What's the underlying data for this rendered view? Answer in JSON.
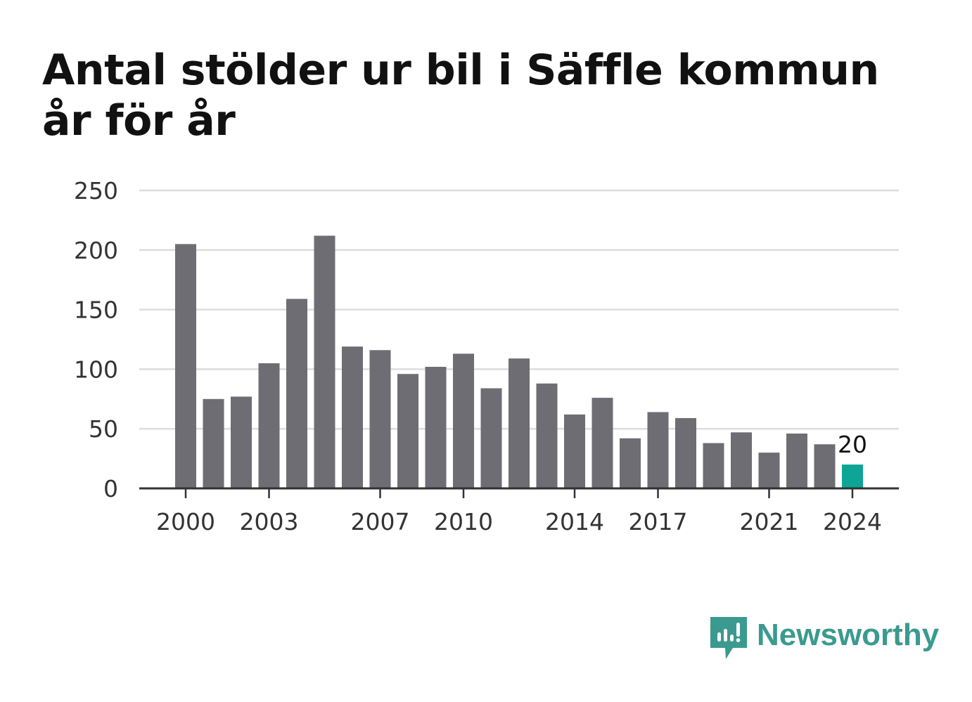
{
  "title": "Antal stölder ur bil i Säffle kommun år för år",
  "brand": {
    "name": "Newsworthy",
    "icon": "newsworthy-logo-icon",
    "color": "#3b9a8f"
  },
  "colors": {
    "bar": "#6e6d73",
    "highlight": "#0ca596",
    "grid": "#dddddd",
    "axis": "#333333",
    "text": "#333333"
  },
  "chart_data": {
    "type": "bar",
    "title": "Antal stölder ur bil i Säffle kommun år för år",
    "xlabel": "",
    "ylabel": "",
    "categories": [
      2000,
      2001,
      2002,
      2003,
      2004,
      2005,
      2006,
      2007,
      2008,
      2009,
      2010,
      2011,
      2012,
      2013,
      2014,
      2015,
      2016,
      2017,
      2018,
      2019,
      2020,
      2021,
      2022,
      2023,
      2024
    ],
    "values": [
      205,
      75,
      77,
      105,
      159,
      212,
      119,
      116,
      96,
      102,
      113,
      84,
      109,
      88,
      62,
      76,
      42,
      64,
      59,
      38,
      47,
      30,
      46,
      37,
      20
    ],
    "ylim": [
      0,
      250
    ],
    "yticks": [
      0,
      50,
      100,
      150,
      200,
      250
    ],
    "xticks": [
      2000,
      2003,
      2007,
      2010,
      2014,
      2017,
      2021,
      2024
    ],
    "highlight": {
      "category": 2024,
      "label": "20"
    },
    "grid": true,
    "legend": "none"
  }
}
